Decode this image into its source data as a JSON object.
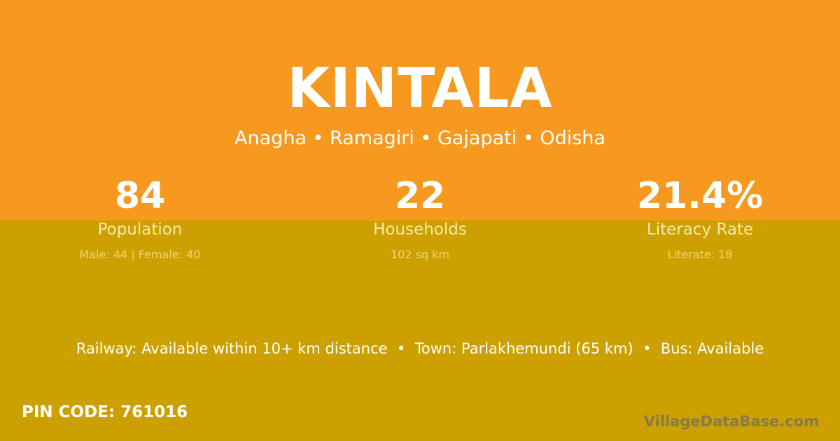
{
  "village": "KINTALA",
  "location": "Anagha • Ramagiri • Gajapati • Odisha",
  "stats": [
    {
      "value": "84",
      "label": "Population",
      "detail": "Male: 44 | Female: 40"
    },
    {
      "value": "22",
      "label": "Households",
      "detail": "102 sq km"
    },
    {
      "value": "21.4%",
      "label": "Literacy Rate",
      "detail": "Literate: 18"
    }
  ],
  "info": "Railway: Available within 10+ km distance  •  Town: Parlakhemundi (65 km)  •  Bus: Available",
  "pin": "PIN CODE: 761016",
  "brand": "VillageDataBase.com",
  "colors": {
    "top": "#f7981f",
    "bottom": "#cba000"
  }
}
